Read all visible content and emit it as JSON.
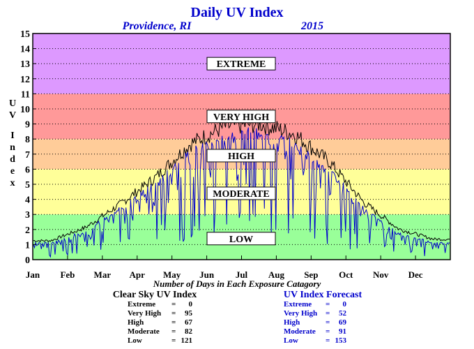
{
  "header": {
    "title": "Daily UV Index",
    "location": "Providence, RI",
    "year": "2015"
  },
  "chart_data": {
    "type": "line",
    "title": "Daily UV Index",
    "ylabel": "UV Index",
    "ylim": [
      0,
      15
    ],
    "yticks": [
      "0",
      "1",
      "2",
      "3",
      "4",
      "5",
      "6",
      "7",
      "8",
      "9",
      "10",
      "11",
      "12",
      "13",
      "14",
      "15"
    ],
    "x_months": [
      "Jan",
      "Feb",
      "Mar",
      "Apr",
      "May",
      "Jun",
      "Jul",
      "Aug",
      "Sep",
      "Oct",
      "Nov",
      "Dec"
    ],
    "grid": true,
    "bands": [
      {
        "label": "LOW",
        "from": 0,
        "to": 3,
        "color": "#99ff99"
      },
      {
        "label": "MODERATE",
        "from": 3,
        "to": 6,
        "color": "#ffff99"
      },
      {
        "label": "HIGH",
        "from": 6,
        "to": 8,
        "color": "#ffcc99"
      },
      {
        "label": "VERY HIGH",
        "from": 8,
        "to": 11,
        "color": "#ff9999"
      },
      {
        "label": "EXTREME",
        "from": 11,
        "to": 15,
        "color": "#dd99ff"
      }
    ],
    "series": [
      {
        "color": "#000000",
        "values_monthly_mean": [
          1.3,
          2.2,
          3.8,
          5.6,
          7.9,
          9.1,
          9.3,
          8.6,
          6.7,
          3.9,
          2.1,
          1.4
        ]
      },
      {
        "color": "#0000cc",
        "values_monthly_mean": [
          1.1,
          1.9,
          3.4,
          4.9,
          7.0,
          8.0,
          8.4,
          7.6,
          5.9,
          3.3,
          1.7,
          1.1
        ]
      }
    ]
  },
  "summary": {
    "title": "Number of Days in Each Exposure Catagory",
    "clear_sky": {
      "heading": "Clear Sky UV Index",
      "rows": [
        {
          "label": "Extreme",
          "value": "0"
        },
        {
          "label": "Very High",
          "value": "95"
        },
        {
          "label": "High",
          "value": "67"
        },
        {
          "label": "Moderate",
          "value": "82"
        },
        {
          "label": "Low",
          "value": "121"
        }
      ]
    },
    "forecast": {
      "heading": "UV Index Forecast",
      "rows": [
        {
          "label": "Extreme",
          "value": "0"
        },
        {
          "label": "Very High",
          "value": "52"
        },
        {
          "label": "High",
          "value": "69"
        },
        {
          "label": "Moderate",
          "value": "91"
        },
        {
          "label": "Low",
          "value": "153"
        }
      ]
    }
  }
}
